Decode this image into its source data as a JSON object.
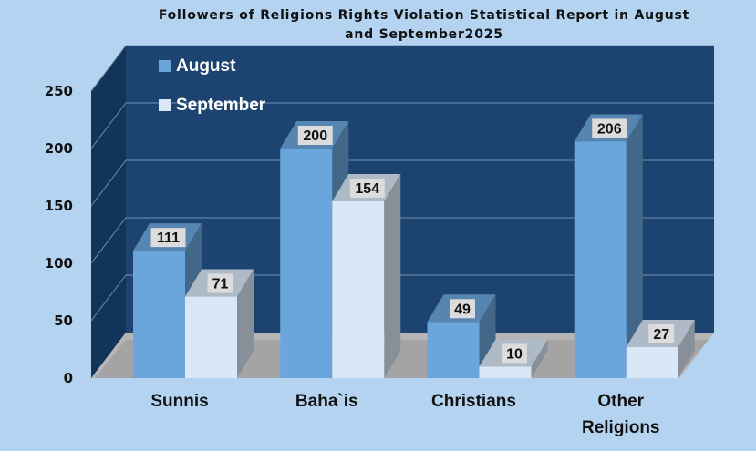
{
  "chart_data": {
    "type": "bar",
    "title_lines": [
      "Followers of Religions Rights Violation Statistical Report in August",
      "and September2025"
    ],
    "categories": [
      [
        "Sunnis"
      ],
      [
        "Baha`is"
      ],
      [
        "Christians"
      ],
      [
        "Other",
        "Religions"
      ]
    ],
    "series": [
      {
        "name": "August",
        "values": [
          111,
          200,
          49,
          206
        ],
        "color": "#6aa6dc"
      },
      {
        "name": "September",
        "values": [
          71,
          154,
          10,
          27
        ],
        "color": "#d9e8f7"
      }
    ],
    "ylim": [
      0,
      250
    ],
    "yticks": [
      0,
      50,
      100,
      150,
      200,
      250
    ],
    "grid": true,
    "legend_position": "top-left",
    "colors": {
      "background": "#b4d3f0",
      "wall": "#1d4470",
      "side_wall": "#123459",
      "floor": "#b5b5b5"
    }
  }
}
